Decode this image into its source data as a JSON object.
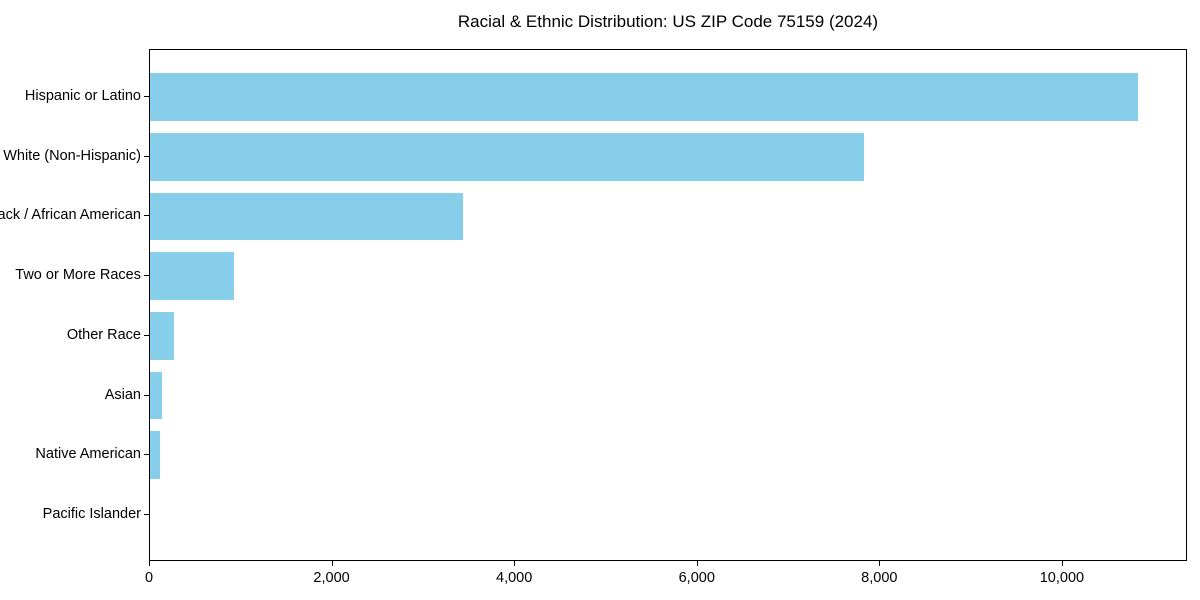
{
  "chart_data": {
    "type": "bar",
    "orientation": "horizontal",
    "title": "Racial & Ethnic Distribution: US ZIP Code 75159 (2024)",
    "categories": [
      "Hispanic or Latino",
      "White (Non-Hispanic)",
      "Black / African American",
      "Two or More Races",
      "Other Race",
      "Asian",
      "Native American",
      "Pacific Islander"
    ],
    "values": [
      10825,
      7820,
      3430,
      920,
      265,
      130,
      105,
      0
    ],
    "xlabel": "",
    "ylabel": "",
    "xlim": [
      0,
      11370
    ],
    "xticks": [
      0,
      2000,
      4000,
      6000,
      8000,
      10000
    ],
    "xtick_labels": [
      "0",
      "2,000",
      "4,000",
      "6,000",
      "8,000",
      "10,000"
    ],
    "bar_color": "#87CEEB",
    "background_color": "#ffffff",
    "spine_color": "#000000",
    "grid": false,
    "legend": null
  }
}
